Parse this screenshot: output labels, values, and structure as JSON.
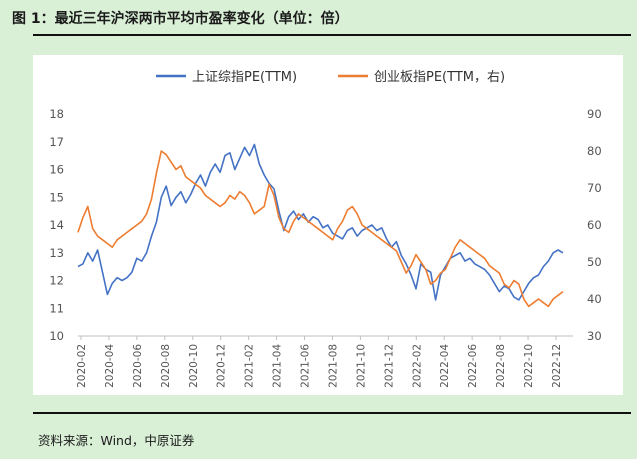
{
  "header": {
    "title": "图 1：最近三年沪深两市平均市盈率变化（单位：倍）"
  },
  "footer": {
    "source": "资料来源：Wind，中原证券"
  },
  "chart_data": {
    "type": "line",
    "title": "图 1：最近三年沪深两市平均市盈率变化（单位：倍）",
    "x_labels": [
      "2020-02",
      "2020-04",
      "2020-06",
      "2020-08",
      "2020-10",
      "2020-12",
      "2021-02",
      "2021-04",
      "2021-06",
      "2021-08",
      "2021-10",
      "2021-12",
      "2022-02",
      "2022-04",
      "2022-06",
      "2022-08",
      "2022-10",
      "2022-12"
    ],
    "y_left": {
      "min": 10,
      "max": 18,
      "ticks": [
        10,
        11,
        12,
        13,
        14,
        15,
        16,
        17,
        18
      ]
    },
    "y_right": {
      "min": 30,
      "max": 90,
      "ticks": [
        30,
        40,
        50,
        60,
        70,
        80,
        90
      ]
    },
    "legend_position": "top",
    "grid": false,
    "series": [
      {
        "name": "上证综指PE(TTM)",
        "axis": "left",
        "color": "#4472C4",
        "values": [
          12.5,
          12.6,
          13.0,
          12.7,
          13.1,
          12.3,
          11.5,
          11.9,
          12.1,
          12.0,
          12.1,
          12.3,
          12.8,
          12.7,
          13.0,
          13.6,
          14.1,
          15.0,
          15.4,
          14.7,
          15.0,
          15.2,
          14.8,
          15.1,
          15.5,
          15.8,
          15.4,
          15.9,
          16.2,
          15.9,
          16.5,
          16.6,
          16.0,
          16.4,
          16.8,
          16.5,
          16.9,
          16.2,
          15.8,
          15.5,
          15.3,
          14.5,
          13.8,
          14.3,
          14.5,
          14.2,
          14.4,
          14.1,
          14.3,
          14.2,
          13.9,
          14.0,
          13.7,
          13.6,
          13.5,
          13.8,
          13.9,
          13.6,
          13.8,
          13.9,
          14.0,
          13.8,
          13.9,
          13.5,
          13.2,
          13.4,
          12.9,
          12.6,
          12.2,
          11.7,
          12.6,
          12.4,
          12.3,
          11.3,
          12.2,
          12.5,
          12.8,
          12.9,
          13.0,
          12.7,
          12.8,
          12.6,
          12.5,
          12.4,
          12.2,
          11.9,
          11.6,
          11.8,
          11.7,
          11.4,
          11.3,
          11.6,
          11.9,
          12.1,
          12.2,
          12.5,
          12.7,
          13.0,
          13.1,
          13.0
        ]
      },
      {
        "name": "创业板指PE(TTM，右)",
        "axis": "right",
        "color": "#ED7D31",
        "values": [
          58,
          62,
          65,
          59,
          57,
          56,
          55,
          54,
          56,
          57,
          58,
          59,
          60,
          61,
          63,
          67,
          74,
          80,
          79,
          77,
          75,
          76,
          73,
          72,
          71,
          70,
          68,
          67,
          66,
          65,
          66,
          68,
          67,
          69,
          68,
          66,
          63,
          64,
          65,
          71,
          68,
          62,
          59,
          58,
          61,
          63,
          62,
          61,
          60,
          59,
          58,
          57,
          56,
          59,
          61,
          64,
          65,
          63,
          60,
          59,
          58,
          57,
          56,
          55,
          54,
          53,
          50,
          47,
          49,
          52,
          50,
          48,
          44,
          45,
          47,
          48,
          51,
          54,
          56,
          55,
          54,
          53,
          52,
          51,
          49,
          48,
          47,
          44,
          43,
          45,
          44,
          40,
          38,
          39,
          40,
          39,
          38,
          40,
          41,
          42
        ]
      }
    ]
  }
}
